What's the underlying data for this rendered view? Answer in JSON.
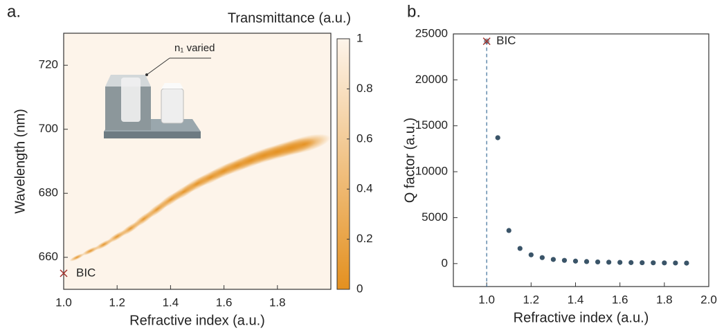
{
  "chart_data": [
    {
      "type": "heatmap",
      "panel_label": "a.",
      "x_label": "Refractive index (a.u.)",
      "y_label": "Wavelength (nm)",
      "colorbar_label": "Transmittance (a.u.)",
      "xlim": [
        1.0,
        2.0
      ],
      "xticks": [
        {
          "value": 1.0,
          "label": "1.0"
        },
        1.2,
        1.4,
        1.6,
        1.8
      ],
      "ylim": [
        650,
        730
      ],
      "yticks": [
        660,
        680,
        700,
        720
      ],
      "clim": [
        0,
        1
      ],
      "cticks": [
        0,
        0.2,
        0.4,
        0.6,
        0.8,
        1
      ],
      "colormap": [
        "#e4901f",
        "#fdf4ea"
      ],
      "resonance": {
        "x": [
          1.05,
          1.1,
          1.15,
          1.2,
          1.25,
          1.3,
          1.35,
          1.4,
          1.45,
          1.5,
          1.55,
          1.6,
          1.65,
          1.7,
          1.75,
          1.8,
          1.85,
          1.9
        ],
        "y": [
          660,
          662,
          664,
          666.5,
          669,
          672,
          675,
          678,
          680.5,
          683,
          685,
          687,
          688.7,
          690.3,
          691.8,
          693,
          694.2,
          695.3
        ]
      },
      "annotation": {
        "label": "BIC",
        "x": 1.0,
        "y": 655,
        "color": "#a3322c"
      },
      "inset_label": "n₁ varied"
    },
    {
      "type": "scatter",
      "panel_label": "b.",
      "x_label": "Refractive index (a.u.)",
      "y_label": "Q factor (a.u.)",
      "xlim": [
        0.85,
        2.0
      ],
      "xticks": [
        {
          "value": 1.0,
          "label": "1.0"
        },
        1.2,
        1.4,
        1.6,
        1.8,
        {
          "value": 2.0,
          "label": "2.0"
        }
      ],
      "ylim": [
        -2500,
        25000
      ],
      "yticks": [
        0,
        5000,
        10000,
        15000,
        20000,
        25000
      ],
      "color": "#3a5468",
      "x": [
        1.05,
        1.1,
        1.15,
        1.2,
        1.25,
        1.3,
        1.35,
        1.4,
        1.45,
        1.5,
        1.55,
        1.6,
        1.65,
        1.7,
        1.75,
        1.8,
        1.85,
        1.9
      ],
      "values": [
        13700,
        3600,
        1650,
        950,
        650,
        450,
        350,
        270,
        220,
        180,
        150,
        130,
        110,
        95,
        85,
        75,
        65,
        55
      ],
      "annotation": {
        "label": "BIC",
        "x": 1.0,
        "y": 24200,
        "color": "#a3322c"
      }
    }
  ]
}
